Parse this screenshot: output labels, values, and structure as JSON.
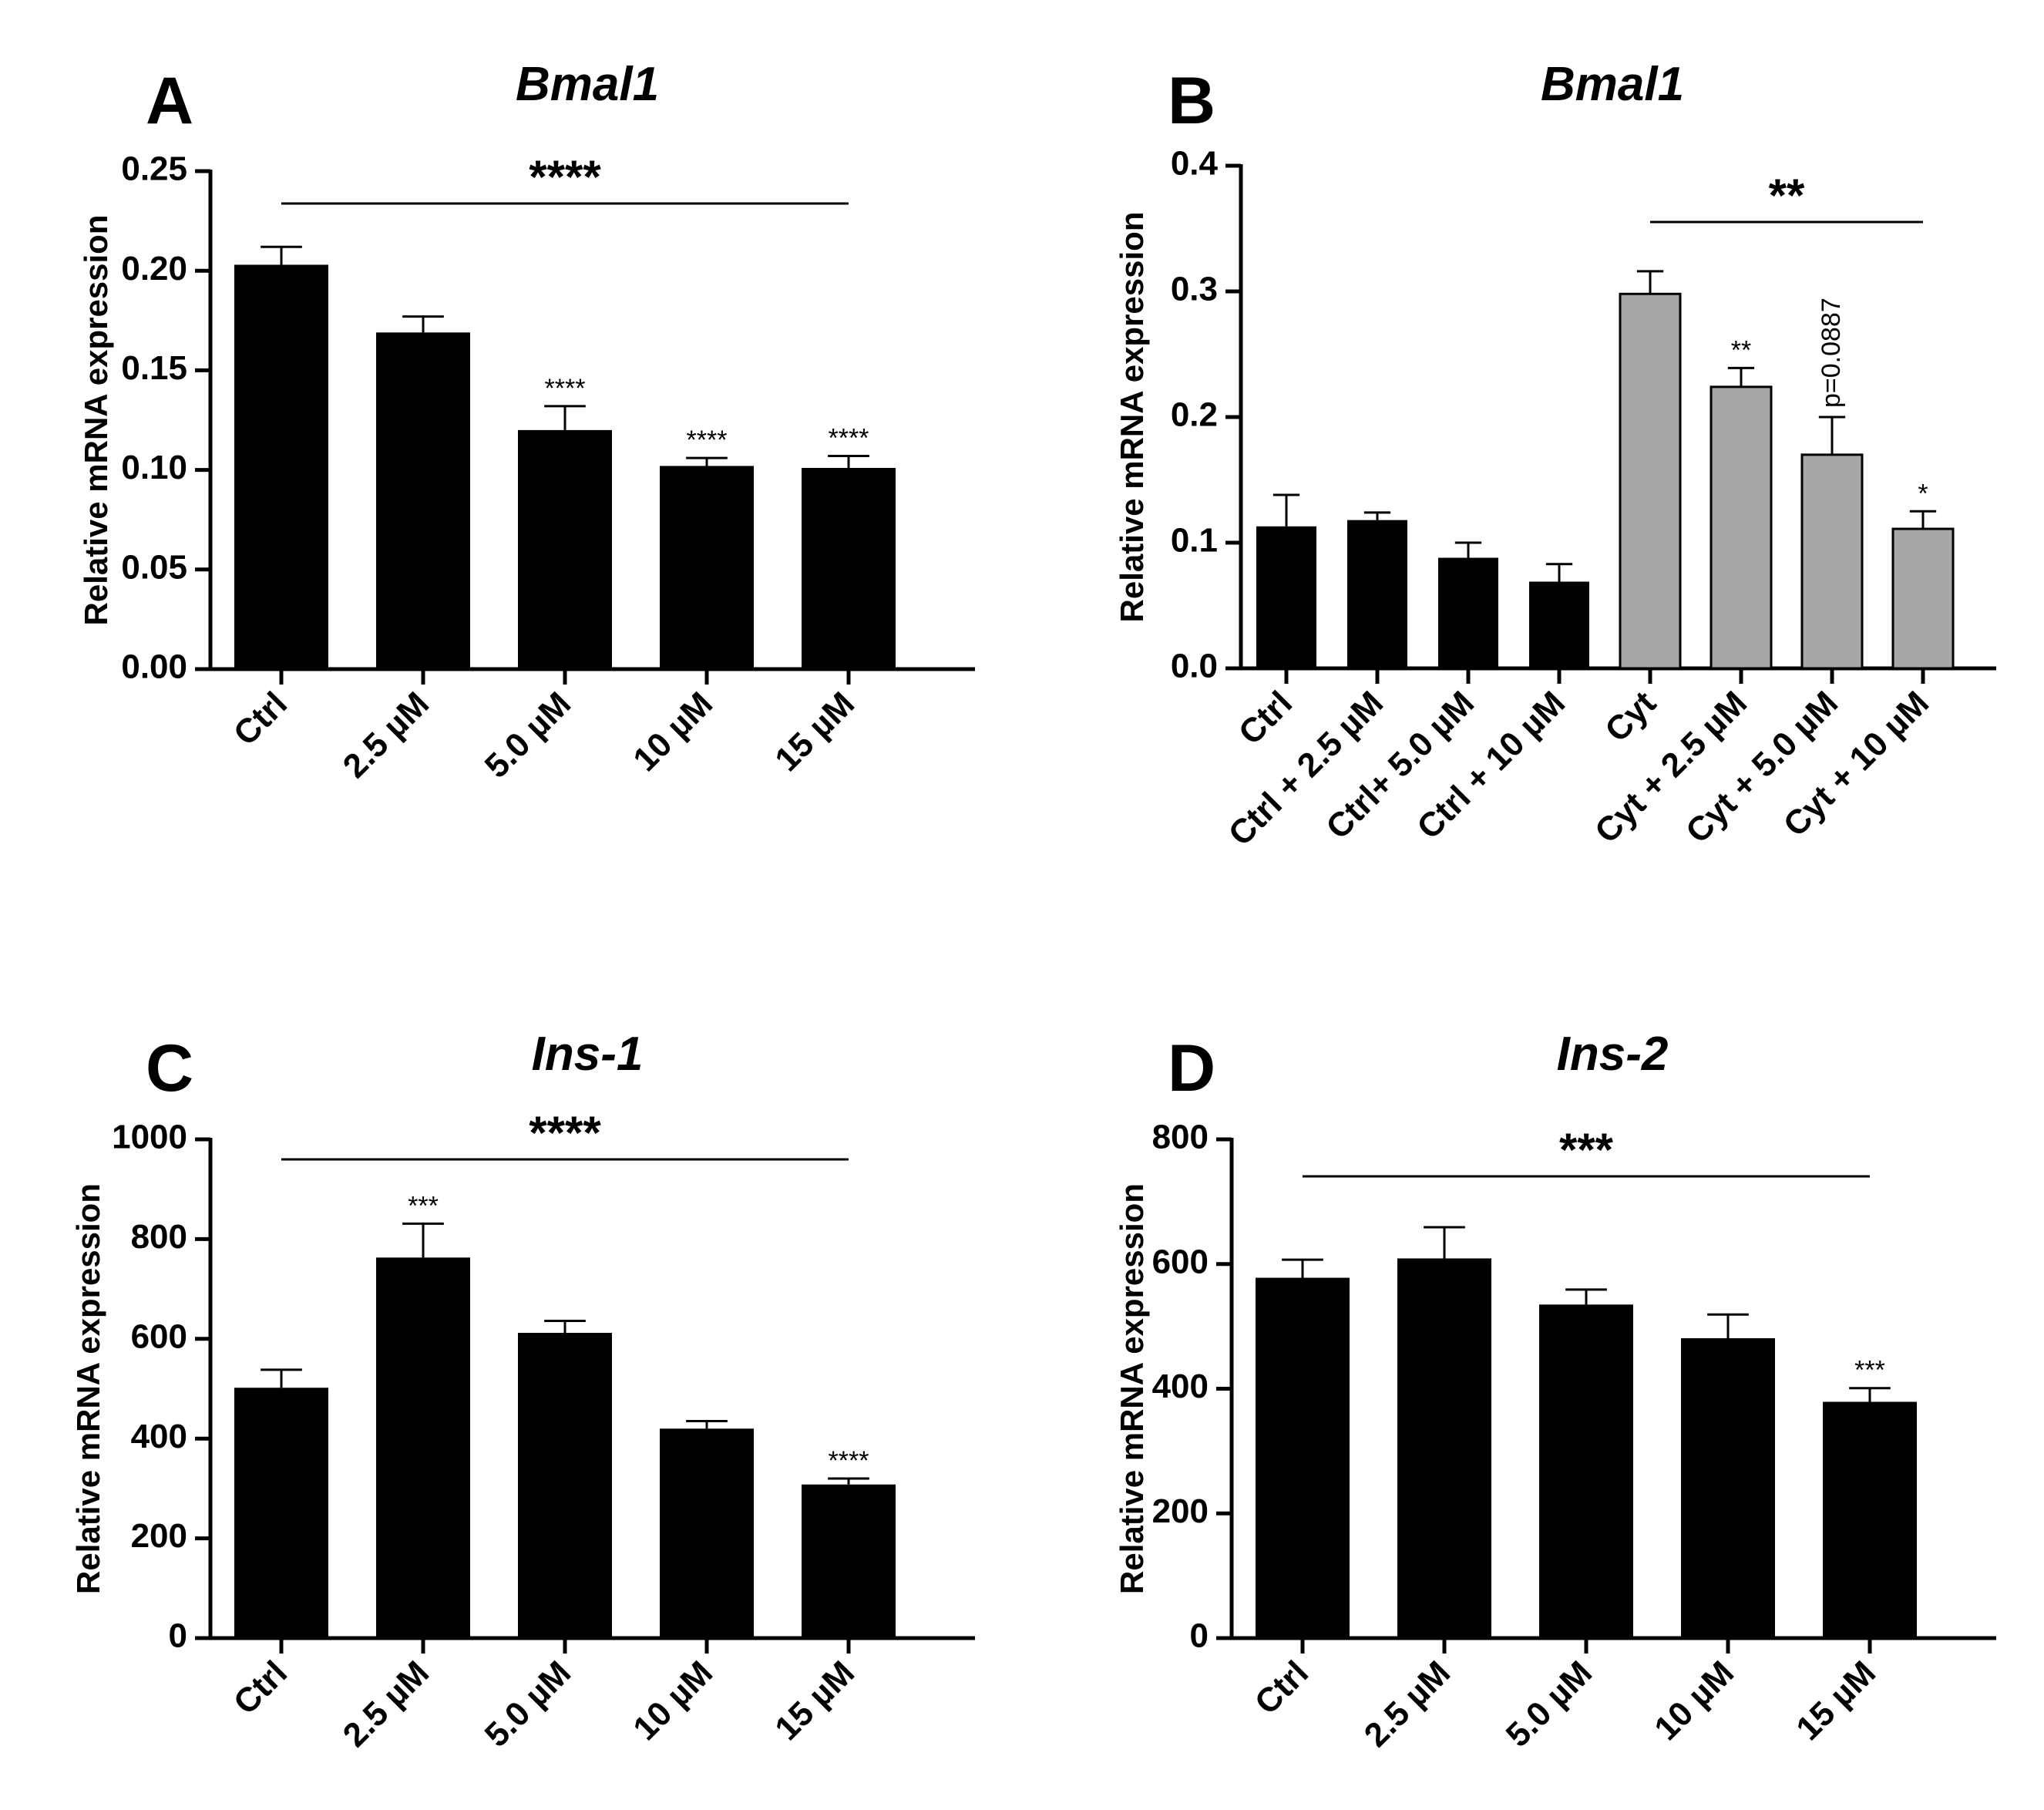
{
  "chart_data": [
    {
      "panel": "A",
      "type": "bar",
      "title": "Bmal1",
      "ylabel": "Relative mRNA expression",
      "ylim": [
        0,
        0.25
      ],
      "yticks": [
        "0.00",
        "0.05",
        "0.10",
        "0.15",
        "0.20",
        "0.25"
      ],
      "categories": [
        "Ctrl",
        "2.5 µM",
        "5.0 µM",
        "10 µM",
        "15 µM"
      ],
      "values": [
        0.203,
        0.169,
        0.12,
        0.102,
        0.101
      ],
      "errors": [
        0.009,
        0.008,
        0.012,
        0.004,
        0.006
      ],
      "colors": [
        "#000000",
        "#000000",
        "#000000",
        "#000000",
        "#000000"
      ],
      "annotations": [
        "",
        "",
        "****",
        "****",
        "****"
      ],
      "bracket": {
        "from": 0,
        "to": 4,
        "label": "****"
      }
    },
    {
      "panel": "B",
      "type": "bar",
      "title": "Bmal1",
      "ylabel": "Relative mRNA expression",
      "ylim": [
        0,
        0.4
      ],
      "yticks": [
        "0.0",
        "0.1",
        "0.2",
        "0.3",
        "0.4"
      ],
      "categories": [
        "Ctrl",
        "Ctrl + 2.5 µM",
        "Ctrl+ 5.0 µM",
        "Ctrl + 10 µM",
        "Cyt",
        "Cyt + 2.5 µM",
        "Cyt + 5.0 µM",
        "Cyt + 10 µM"
      ],
      "values": [
        0.113,
        0.118,
        0.088,
        0.069,
        0.298,
        0.224,
        0.17,
        0.111
      ],
      "errors": [
        0.025,
        0.006,
        0.012,
        0.014,
        0.018,
        0.015,
        0.03,
        0.014
      ],
      "colors": [
        "#000000",
        "#000000",
        "#000000",
        "#000000",
        "#a7a7aa",
        "#a7a7aa",
        "#a7a7aa",
        "#a7a7aa"
      ],
      "annotations": [
        "",
        "",
        "",
        "",
        "",
        "**",
        "p=0.0887",
        "*"
      ],
      "bracket": {
        "from": 4,
        "to": 7,
        "label": "**"
      }
    },
    {
      "panel": "C",
      "type": "bar",
      "title": "Ins-1",
      "ylabel": "Relative mRNA expression",
      "ylim": [
        0,
        1000
      ],
      "yticks": [
        "0",
        "200",
        "400",
        "600",
        "800",
        "1000"
      ],
      "categories": [
        "Ctrl",
        "2.5 µM",
        "5.0 µM",
        "10 µM",
        "15 µM"
      ],
      "values": [
        502,
        763,
        612,
        420,
        308
      ],
      "errors": [
        36,
        68,
        24,
        15,
        12
      ],
      "colors": [
        "#000000",
        "#000000",
        "#000000",
        "#000000",
        "#000000"
      ],
      "annotations": [
        "",
        "***",
        "",
        "",
        "****"
      ],
      "bracket": {
        "from": 0,
        "to": 4,
        "label": "****"
      }
    },
    {
      "panel": "D",
      "type": "bar",
      "title": "Ins-2",
      "ylabel": "Relative mRNA expression",
      "ylim": [
        0,
        800
      ],
      "yticks": [
        "0",
        "200",
        "400",
        "600",
        "800"
      ],
      "categories": [
        "Ctrl",
        "2.5 µM",
        "5.0 µM",
        "10 µM",
        "15 µM"
      ],
      "values": [
        578,
        609,
        535,
        481,
        379
      ],
      "errors": [
        29,
        50,
        24,
        38,
        22
      ],
      "colors": [
        "#000000",
        "#000000",
        "#000000",
        "#000000",
        "#000000"
      ],
      "annotations": [
        "",
        "",
        "",
        "",
        "***"
      ],
      "bracket": {
        "from": 0,
        "to": 4,
        "label": "***"
      }
    }
  ]
}
